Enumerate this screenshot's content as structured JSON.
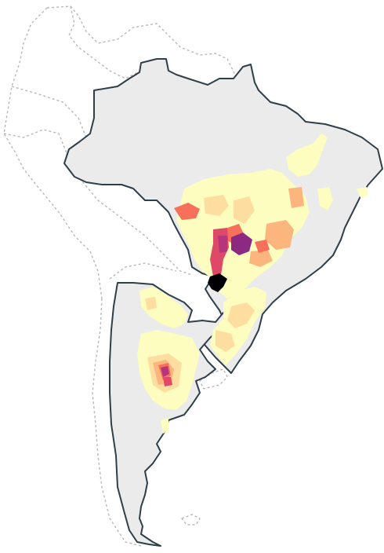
{
  "map": {
    "description_visible_text": "",
    "colors": {
      "land": "#ebebeb",
      "border": "#2f3f4a",
      "neighbor_border": "#b8b8b8",
      "background": "#ffffff",
      "scale": [
        "#fcfdbf",
        "#fddea0",
        "#fcb57d",
        "#f7705c",
        "#de4968",
        "#b5367a",
        "#8c2981",
        "#000004"
      ]
    },
    "countries_highlighted": [
      "Brazil",
      "Argentina"
    ],
    "value_levels": [
      {
        "level": 1,
        "color": "#fcfdbf"
      },
      {
        "level": 2,
        "color": "#fddea0"
      },
      {
        "level": 3,
        "color": "#fcb57d"
      },
      {
        "level": 4,
        "color": "#f7705c"
      },
      {
        "level": 5,
        "color": "#de4968"
      },
      {
        "level": 6,
        "color": "#b5367a"
      },
      {
        "level": 7,
        "color": "#8c2981"
      },
      {
        "level": 8,
        "color": "#000004"
      }
    ]
  }
}
